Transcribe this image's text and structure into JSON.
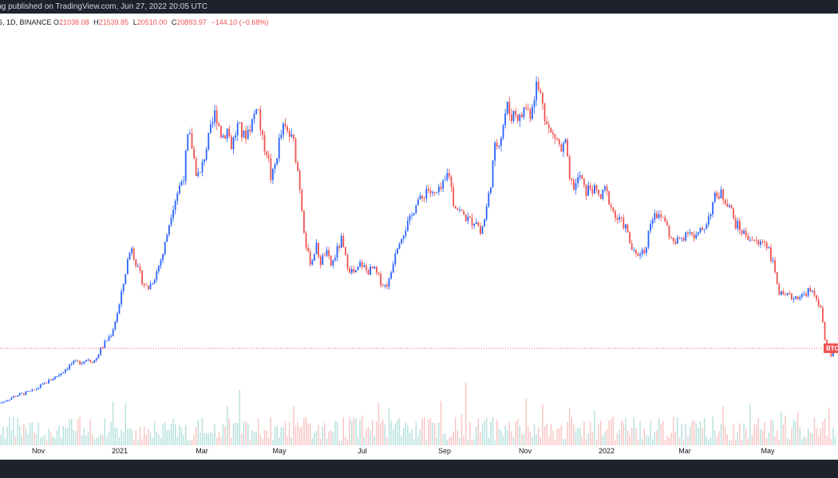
{
  "header": {
    "published_text": "ing published on TradingView.com, Jun 27, 2022 20:05 UTC"
  },
  "legend": {
    "symbol_text": "S, 1D, BINANCE",
    "open_label": "O",
    "open_value": "21038.08",
    "high_label": "H",
    "high_value": "21539.85",
    "low_label": "L",
    "low_value": "20510.00",
    "close_label": "C",
    "close_value": "20893.97",
    "change_value": "−144.10 (−0.68%)"
  },
  "price_tag": {
    "label": "BTC"
  },
  "colors": {
    "up": "#2962ff",
    "down": "#ef5350",
    "volume_up": "#26a69a",
    "volume_down": "#ef5350",
    "price_line": "#ef5350",
    "header_bg": "#1e222d"
  },
  "chart_data": {
    "type": "candlestick",
    "interval": "1D",
    "x_tick_labels": [
      "Nov",
      "2021",
      "Mar",
      "May",
      "Jul",
      "Sep",
      "Nov",
      "2022",
      "Mar",
      "May"
    ],
    "last_close": 20893.97,
    "price_axis": "none shown",
    "grid": false,
    "volume_panel": true,
    "series": [
      {
        "name": "price",
        "values": [
          [
            0,
            11500
          ],
          [
            20,
            12800
          ],
          [
            40,
            13500
          ],
          [
            60,
            15200
          ],
          [
            75,
            16500
          ],
          [
            90,
            18300
          ],
          [
            100,
            18500
          ],
          [
            110,
            19100
          ],
          [
            115,
            18700
          ],
          [
            120,
            18900
          ],
          [
            125,
            20500
          ],
          [
            130,
            21500
          ],
          [
            140,
            23500
          ],
          [
            150,
            28500
          ],
          [
            160,
            36000
          ],
          [
            165,
            38500
          ],
          [
            172,
            34500
          ],
          [
            180,
            32000
          ],
          [
            185,
            31000
          ],
          [
            195,
            33500
          ],
          [
            205,
            37500
          ],
          [
            215,
            44500
          ],
          [
            222,
            47500
          ],
          [
            230,
            50500
          ],
          [
            236,
            57500
          ],
          [
            240,
            56000
          ],
          [
            245,
            51500
          ],
          [
            250,
            50000
          ],
          [
            258,
            55000
          ],
          [
            265,
            58500
          ],
          [
            270,
            61500
          ],
          [
            278,
            57000
          ],
          [
            285,
            58500
          ],
          [
            290,
            55500
          ],
          [
            298,
            59000
          ],
          [
            305,
            57000
          ],
          [
            312,
            58500
          ],
          [
            318,
            60500
          ],
          [
            322,
            63500
          ],
          [
            328,
            56500
          ],
          [
            335,
            54500
          ],
          [
            340,
            49500
          ],
          [
            345,
            52500
          ],
          [
            350,
            56500
          ],
          [
            355,
            58500
          ],
          [
            362,
            57500
          ],
          [
            368,
            56000
          ],
          [
            375,
            49500
          ],
          [
            380,
            42500
          ],
          [
            385,
            37000
          ],
          [
            390,
            35500
          ],
          [
            396,
            38500
          ],
          [
            402,
            35500
          ],
          [
            408,
            37500
          ],
          [
            415,
            35000
          ],
          [
            422,
            37500
          ],
          [
            428,
            39500
          ],
          [
            432,
            36500
          ],
          [
            438,
            34500
          ],
          [
            445,
            33500
          ],
          [
            452,
            35500
          ],
          [
            460,
            34000
          ],
          [
            468,
            34500
          ],
          [
            475,
            32800
          ],
          [
            482,
            31500
          ],
          [
            488,
            32500
          ],
          [
            495,
            37500
          ],
          [
            500,
            39500
          ],
          [
            508,
            41500
          ],
          [
            515,
            43000
          ],
          [
            522,
            46500
          ],
          [
            528,
            46000
          ],
          [
            535,
            48500
          ],
          [
            542,
            47000
          ],
          [
            550,
            47500
          ],
          [
            557,
            49000
          ],
          [
            562,
            51500
          ],
          [
            568,
            46000
          ],
          [
            575,
            44500
          ],
          [
            582,
            43500
          ],
          [
            590,
            42500
          ],
          [
            597,
            43000
          ],
          [
            602,
            40500
          ],
          [
            608,
            43500
          ],
          [
            614,
            48500
          ],
          [
            620,
            55000
          ],
          [
            628,
            57500
          ],
          [
            635,
            62500
          ],
          [
            640,
            60500
          ],
          [
            645,
            61500
          ],
          [
            652,
            60000
          ],
          [
            658,
            62500
          ],
          [
            664,
            61000
          ],
          [
            668,
            63500
          ],
          [
            672,
            66000
          ],
          [
            676,
            64500
          ],
          [
            680,
            63500
          ],
          [
            684,
            59500
          ],
          [
            690,
            57500
          ],
          [
            697,
            57000
          ],
          [
            703,
            54500
          ],
          [
            710,
            56500
          ],
          [
            712,
            49500
          ],
          [
            720,
            48500
          ],
          [
            727,
            50500
          ],
          [
            733,
            47500
          ],
          [
            740,
            48500
          ],
          [
            747,
            47500
          ],
          [
            753,
            46500
          ],
          [
            758,
            48000
          ],
          [
            764,
            46000
          ],
          [
            770,
            43500
          ],
          [
            777,
            42500
          ],
          [
            783,
            42000
          ],
          [
            790,
            38500
          ],
          [
            796,
            36500
          ],
          [
            802,
            37500
          ],
          [
            808,
            37500
          ],
          [
            815,
            42500
          ],
          [
            820,
            44500
          ],
          [
            826,
            43000
          ],
          [
            832,
            43500
          ],
          [
            838,
            40500
          ],
          [
            845,
            38500
          ],
          [
            850,
            39500
          ],
          [
            856,
            40000
          ],
          [
            863,
            41500
          ],
          [
            870,
            39500
          ],
          [
            876,
            40500
          ],
          [
            882,
            41500
          ],
          [
            888,
            43500
          ],
          [
            895,
            46500
          ],
          [
            902,
            47500
          ],
          [
            908,
            46500
          ],
          [
            914,
            45500
          ],
          [
            920,
            42500
          ],
          [
            926,
            41500
          ],
          [
            932,
            40500
          ],
          [
            938,
            40000
          ],
          [
            944,
            39500
          ],
          [
            950,
            38500
          ],
          [
            956,
            39500
          ],
          [
            962,
            38500
          ],
          [
            968,
            35500
          ],
          [
            972,
            33500
          ],
          [
            976,
            30500
          ],
          [
            982,
            29500
          ],
          [
            988,
            29800
          ],
          [
            994,
            29500
          ],
          [
            1000,
            29900
          ],
          [
            1006,
            29800
          ],
          [
            1012,
            30800
          ],
          [
            1018,
            30200
          ],
          [
            1024,
            29500
          ],
          [
            1030,
            26500
          ],
          [
            1034,
            21500
          ],
          [
            1038,
            20500
          ],
          [
            1042,
            19500
          ],
          [
            1046,
            21000
          ],
          [
            1050,
            20900
          ]
        ]
      }
    ]
  }
}
